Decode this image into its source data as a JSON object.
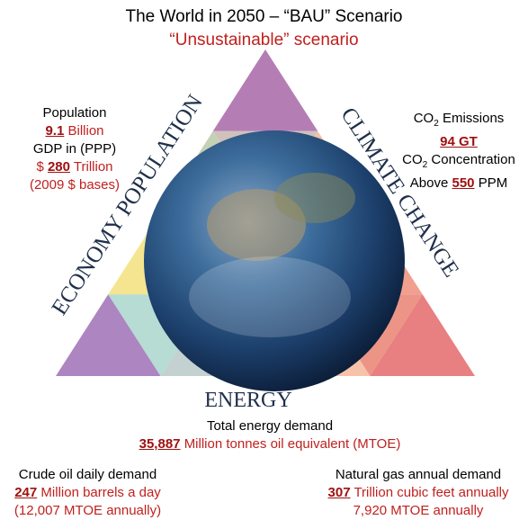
{
  "title": "The World in 2050 – “BAU” Scenario",
  "subtitle": "“Unsustainable” scenario",
  "triangle": {
    "left": "ECONOMY POPULATION",
    "right": "CLIMATE CHANGE",
    "bottom": "ENERGY"
  },
  "economy": {
    "population_label": "Population",
    "population_value": "9.1",
    "population_unit": "Billion",
    "gdp_label": "GDP in (PPP)",
    "gdp_prefix": "$",
    "gdp_value": "280",
    "gdp_unit": "Trillion",
    "gdp_note": "(2009 $ bases)"
  },
  "climate": {
    "emissions_prefix": "CO",
    "emissions_sub": "2",
    "emissions_label": "Emissions",
    "emissions_value": "94 GT",
    "concentration_prefix": "CO",
    "concentration_sub": "2",
    "concentration_label": "Concentration",
    "concentration_pre": "Above",
    "concentration_value": "550",
    "concentration_unit": "PPM"
  },
  "energy": {
    "label": "Total energy demand",
    "value": "35,887",
    "unit": "Million tonnes oil equivalent (MTOE)"
  },
  "crude_oil": {
    "label": "Crude oil daily demand",
    "value": "247",
    "unit": "Million barrels a day",
    "note": "(12,007 MTOE annually)"
  },
  "natural_gas": {
    "label": "Natural gas annual demand",
    "value": "307",
    "unit": "Trillion cubic feet annually",
    "note": "7,920 MTOE annually"
  }
}
